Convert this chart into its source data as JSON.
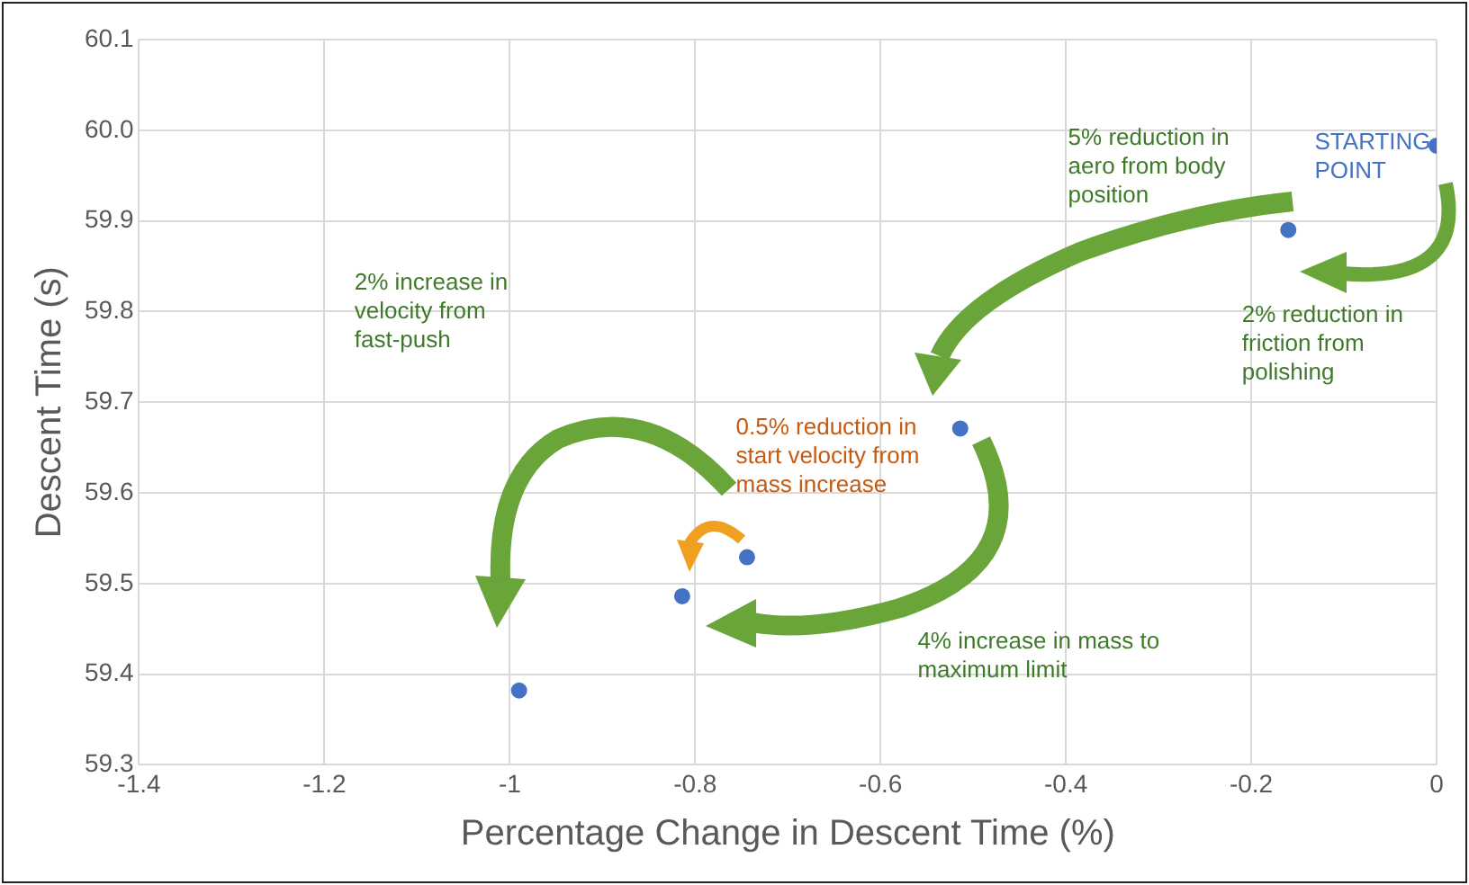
{
  "chart_data": {
    "type": "scatter",
    "xlabel": "Percentage Change in Descent Time (%)",
    "ylabel": "Descent Time (s)",
    "x": [
      0,
      -0.16,
      -0.514,
      -0.744,
      -0.814,
      -0.99
    ],
    "values": [
      59.983,
      59.89,
      59.671,
      59.529,
      59.486,
      59.382
    ],
    "color": "#4472c4",
    "marker": "circle",
    "grid": true,
    "xlim": [
      -1.4,
      0
    ],
    "xticks": [
      -1.4,
      -1.2,
      -1,
      -0.8,
      -0.6,
      -0.4,
      -0.2,
      0
    ],
    "ylim": [
      59.3,
      60.1
    ],
    "yticks": [
      59.3,
      59.4,
      59.5,
      59.6,
      59.7,
      59.8,
      59.9,
      {
        "value": 60,
        "label": "60.0"
      },
      60.1
    ],
    "annotations": [
      "STARTING POINT",
      "5% reduction in aero from body position",
      "2% reduction in friction from polishing",
      "2% increase in velocity from fast-push",
      "0.5% reduction in start velocity from mass increase",
      "4% increase in mass to maximum limit"
    ]
  }
}
